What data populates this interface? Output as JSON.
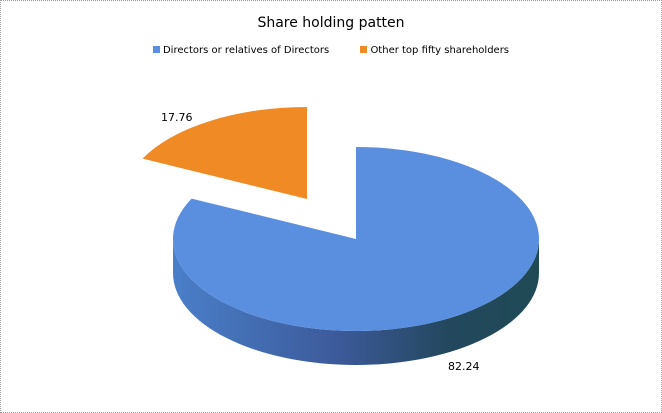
{
  "chart_data": {
    "type": "pie",
    "variant": "3d-exploded",
    "title": "Share holding patten",
    "legend_position": "top",
    "slices": [
      {
        "name": "Directors or relatives of Directors",
        "value": 82.24,
        "label": "82.24",
        "color": "#5a8fe0",
        "exploded": false
      },
      {
        "name": "Other top fifty shareholders",
        "value": 17.76,
        "label": "17.76",
        "color": "#f08a24",
        "exploded": true
      }
    ]
  }
}
